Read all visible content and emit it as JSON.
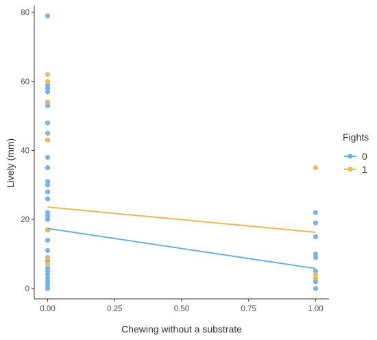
{
  "chart_data": {
    "type": "scatter",
    "title": "",
    "xlabel": "Chewing without a substrate",
    "ylabel": "Lively (mm)",
    "xlim": [
      -0.05,
      1.05
    ],
    "ylim": [
      -3,
      82
    ],
    "x_ticks": [
      0.0,
      0.25,
      0.5,
      0.75,
      1.0
    ],
    "x_tick_labels": [
      "0.00",
      "0.25",
      "0.50",
      "0.75",
      "1.00"
    ],
    "y_ticks": [
      0,
      20,
      40,
      60,
      80
    ],
    "y_tick_labels": [
      "0",
      "20",
      "40",
      "60",
      "80"
    ],
    "grid": false,
    "legend": {
      "title": "Fights",
      "position": "right",
      "entries": [
        "0",
        "1"
      ]
    },
    "series": [
      {
        "name": "0",
        "color": "#6aaee8",
        "points": [
          [
            0,
            79
          ],
          [
            0,
            59
          ],
          [
            0,
            58
          ],
          [
            0,
            57
          ],
          [
            0,
            54
          ],
          [
            0,
            53
          ],
          [
            0,
            48
          ],
          [
            0,
            45
          ],
          [
            0,
            43
          ],
          [
            0,
            38
          ],
          [
            0,
            35
          ],
          [
            0,
            31
          ],
          [
            0,
            30
          ],
          [
            0,
            28
          ],
          [
            0,
            26
          ],
          [
            0,
            22
          ],
          [
            0,
            21
          ],
          [
            0,
            20
          ],
          [
            0,
            17
          ],
          [
            0,
            14
          ],
          [
            0,
            11
          ],
          [
            0,
            9
          ],
          [
            0,
            8
          ],
          [
            0,
            6
          ],
          [
            0,
            5
          ],
          [
            0,
            4
          ],
          [
            0,
            3
          ],
          [
            0,
            2
          ],
          [
            0,
            1
          ],
          [
            0,
            0
          ],
          [
            1,
            22
          ],
          [
            1,
            19
          ],
          [
            1,
            15
          ],
          [
            1,
            10
          ],
          [
            1,
            9
          ],
          [
            1,
            5
          ],
          [
            1,
            3
          ],
          [
            1,
            2
          ],
          [
            1,
            0
          ]
        ],
        "fit": {
          "x": [
            0,
            1
          ],
          "y": [
            17.4,
            5.8
          ]
        }
      },
      {
        "name": "1",
        "color": "#f5b552",
        "points": [
          [
            0,
            62
          ],
          [
            0,
            60
          ],
          [
            0,
            54
          ],
          [
            0,
            43
          ],
          [
            0,
            17
          ],
          [
            0,
            9
          ],
          [
            0,
            7
          ],
          [
            1,
            35
          ],
          [
            1,
            4
          ],
          [
            1,
            3
          ]
        ],
        "fit": {
          "x": [
            0,
            1
          ],
          "y": [
            23.6,
            16.3
          ]
        }
      }
    ]
  }
}
